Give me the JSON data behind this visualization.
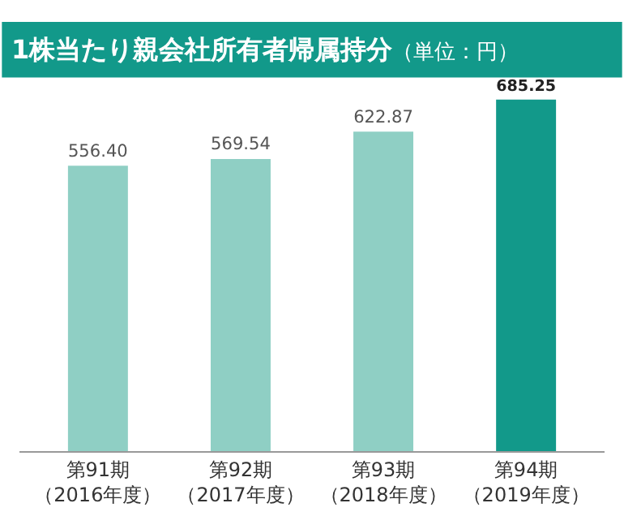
{
  "chart_data": {
    "type": "bar",
    "title": "1株当たり親会社所有者帰属持分",
    "subtitle": "（単位：円）",
    "categories": [
      "第91期（2016年度）",
      "第92期（2017年度）",
      "第93期（2018年度）",
      "第94期（2019年度）"
    ],
    "values": [
      556.4,
      569.54,
      622.87,
      685.25
    ],
    "value_labels": [
      "556.40",
      "569.54",
      "622.87",
      "685.25"
    ],
    "colors": [
      "#8fcfc4",
      "#8fcfc4",
      "#8fcfc4",
      "#12998a"
    ],
    "tick_labels": "x"
  }
}
